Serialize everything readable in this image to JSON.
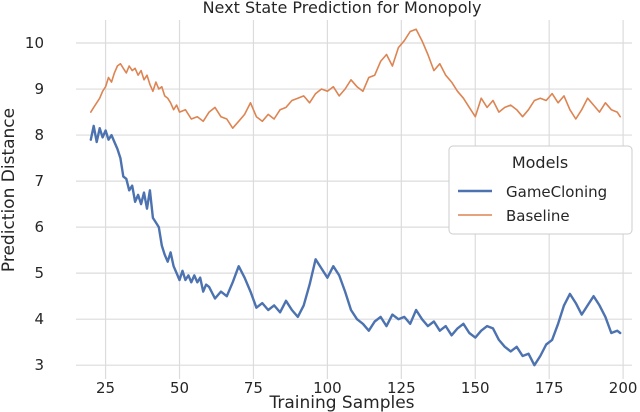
{
  "chart_data": {
    "type": "line",
    "title": "Next State Prediction for Monopoly",
    "xlabel": "Training Samples",
    "ylabel": "Prediction Distance",
    "xlim": [
      15,
      203
    ],
    "ylim": [
      2.7,
      10.5
    ],
    "xticks": [
      25,
      50,
      75,
      100,
      125,
      150,
      175,
      200
    ],
    "yticks": [
      3,
      4,
      5,
      6,
      7,
      8,
      9,
      10
    ],
    "grid": true,
    "legend": {
      "title": "Models",
      "placement": "center-right"
    },
    "series": [
      {
        "name": "GameCloning",
        "color": "#4c72b0",
        "x": [
          20,
          21,
          22,
          23,
          24,
          25,
          26,
          27,
          28,
          29,
          30,
          31,
          32,
          33,
          34,
          35,
          36,
          37,
          38,
          39,
          40,
          41,
          42,
          43,
          44,
          45,
          46,
          47,
          48,
          49,
          50,
          51,
          52,
          53,
          54,
          55,
          56,
          57,
          58,
          59,
          60,
          62,
          64,
          66,
          68,
          70,
          72,
          74,
          76,
          78,
          80,
          82,
          84,
          86,
          88,
          90,
          92,
          94,
          96,
          98,
          100,
          102,
          104,
          106,
          108,
          110,
          112,
          114,
          116,
          118,
          120,
          122,
          124,
          126,
          128,
          130,
          132,
          134,
          136,
          138,
          140,
          142,
          144,
          146,
          148,
          150,
          152,
          154,
          156,
          158,
          160,
          162,
          164,
          166,
          168,
          170,
          172,
          174,
          176,
          178,
          180,
          182,
          184,
          186,
          188,
          190,
          192,
          194,
          196,
          198,
          199
        ],
        "values": [
          7.9,
          8.2,
          7.85,
          8.15,
          7.95,
          8.1,
          7.9,
          8.0,
          7.85,
          7.7,
          7.5,
          7.1,
          7.05,
          6.8,
          6.9,
          6.55,
          6.7,
          6.5,
          6.75,
          6.4,
          6.8,
          6.2,
          6.1,
          6.0,
          5.6,
          5.4,
          5.25,
          5.45,
          5.15,
          5.0,
          4.85,
          5.05,
          4.85,
          4.95,
          4.8,
          4.95,
          4.8,
          4.9,
          4.6,
          4.75,
          4.7,
          4.45,
          4.6,
          4.5,
          4.8,
          5.15,
          4.9,
          4.6,
          4.25,
          4.35,
          4.2,
          4.3,
          4.15,
          4.4,
          4.2,
          4.05,
          4.3,
          4.75,
          5.3,
          5.1,
          4.9,
          5.15,
          4.95,
          4.6,
          4.2,
          4.0,
          3.9,
          3.75,
          3.95,
          4.05,
          3.85,
          4.1,
          4.0,
          4.05,
          3.9,
          4.2,
          4.0,
          3.85,
          3.95,
          3.75,
          3.85,
          3.65,
          3.8,
          3.9,
          3.7,
          3.6,
          3.75,
          3.85,
          3.8,
          3.55,
          3.4,
          3.3,
          3.4,
          3.2,
          3.25,
          3.0,
          3.2,
          3.45,
          3.55,
          3.9,
          4.3,
          4.55,
          4.35,
          4.1,
          4.3,
          4.5,
          4.3,
          4.05,
          3.7,
          3.75,
          3.7
        ],
        "x_labelled_points_note": ""
      },
      {
        "name": "Baseline",
        "color": "#dd8452",
        "x": [
          20,
          21,
          22,
          23,
          24,
          25,
          26,
          27,
          28,
          29,
          30,
          31,
          32,
          33,
          34,
          35,
          36,
          37,
          38,
          39,
          40,
          41,
          42,
          43,
          44,
          45,
          46,
          47,
          48,
          49,
          50,
          52,
          54,
          56,
          58,
          60,
          62,
          64,
          66,
          68,
          70,
          72,
          74,
          76,
          78,
          80,
          82,
          84,
          86,
          88,
          90,
          92,
          94,
          96,
          98,
          100,
          102,
          104,
          106,
          108,
          110,
          112,
          114,
          116,
          118,
          120,
          122,
          124,
          126,
          128,
          130,
          132,
          134,
          136,
          138,
          140,
          142,
          144,
          146,
          148,
          150,
          152,
          154,
          156,
          158,
          160,
          162,
          164,
          166,
          168,
          170,
          172,
          174,
          176,
          178,
          180,
          182,
          184,
          186,
          188,
          190,
          192,
          194,
          196,
          198,
          199
        ],
        "values": [
          8.5,
          8.6,
          8.7,
          8.8,
          8.95,
          9.05,
          9.25,
          9.15,
          9.35,
          9.5,
          9.55,
          9.45,
          9.35,
          9.5,
          9.4,
          9.45,
          9.3,
          9.4,
          9.2,
          9.3,
          9.1,
          8.95,
          9.15,
          9.0,
          9.05,
          8.85,
          8.8,
          8.7,
          8.55,
          8.65,
          8.5,
          8.55,
          8.35,
          8.4,
          8.3,
          8.5,
          8.6,
          8.4,
          8.35,
          8.15,
          8.3,
          8.45,
          8.7,
          8.4,
          8.3,
          8.45,
          8.35,
          8.55,
          8.6,
          8.75,
          8.8,
          8.85,
          8.7,
          8.9,
          9.0,
          8.95,
          9.05,
          8.85,
          9.0,
          9.2,
          9.05,
          8.95,
          9.25,
          9.3,
          9.6,
          9.75,
          9.5,
          9.9,
          10.05,
          10.25,
          10.3,
          10.05,
          9.75,
          9.4,
          9.55,
          9.3,
          9.15,
          8.95,
          8.8,
          8.6,
          8.4,
          8.8,
          8.6,
          8.75,
          8.5,
          8.6,
          8.65,
          8.55,
          8.4,
          8.55,
          8.75,
          8.8,
          8.75,
          8.9,
          8.7,
          8.85,
          8.55,
          8.35,
          8.55,
          8.8,
          8.65,
          8.5,
          8.7,
          8.55,
          8.5,
          8.4
        ]
      }
    ]
  }
}
